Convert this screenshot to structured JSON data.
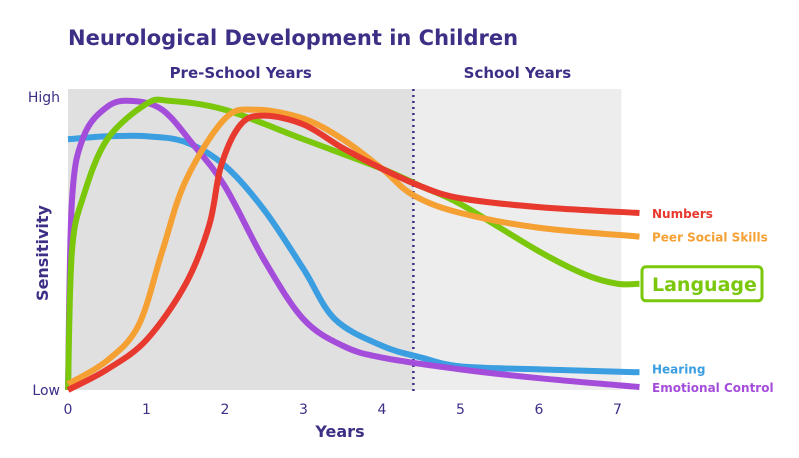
{
  "chart_data": {
    "type": "line",
    "title": "Neurological Development in Children",
    "xlabel": "Years",
    "ylabel": "Sensitivity",
    "xlim": [
      0,
      7.3
    ],
    "ylim": [
      0,
      1
    ],
    "x_ticks": [
      "0",
      "1",
      "2",
      "3",
      "4",
      "5",
      "6",
      "7"
    ],
    "y_ticks": [
      "Low",
      "High"
    ],
    "regions": [
      {
        "label": "Pre-School Years",
        "x": [
          0,
          4.4
        ],
        "color": "#e0e0e0"
      },
      {
        "label": "School Years",
        "x": [
          4.4,
          7.05
        ],
        "color": "#ededed"
      }
    ],
    "divider_x": 4.4,
    "grid": false,
    "colors": {
      "title": "#3d2f86",
      "axis": "#3d2f86",
      "divider": "#3d2f86"
    },
    "series": [
      {
        "name": "Numbers",
        "color": "#e8392f",
        "highlight": false,
        "x": [
          0,
          0.5,
          1,
          1.5,
          1.8,
          1.95,
          2.2,
          2.5,
          3,
          3.5,
          4,
          4.5,
          5,
          6,
          7.28
        ],
        "y": [
          0,
          0.07,
          0.17,
          0.36,
          0.56,
          0.76,
          0.9,
          0.93,
          0.9,
          0.82,
          0.75,
          0.69,
          0.65,
          0.62,
          0.6
        ]
      },
      {
        "name": "Peer Social Skills",
        "color": "#f5a033",
        "highlight": false,
        "x": [
          0,
          0.5,
          0.9,
          1.2,
          1.5,
          2,
          2.4,
          3,
          3.5,
          4,
          4.4,
          5,
          6,
          7.28
        ],
        "y": [
          0.02,
          0.1,
          0.22,
          0.47,
          0.71,
          0.92,
          0.95,
          0.92,
          0.85,
          0.75,
          0.66,
          0.6,
          0.55,
          0.52
        ]
      },
      {
        "name": "Language",
        "color": "#7ac70c",
        "highlight": true,
        "x": [
          0,
          0.05,
          0.2,
          0.5,
          1,
          1.3,
          2,
          3,
          4,
          4.5,
          5,
          6,
          6.6,
          7,
          7.28
        ],
        "y": [
          0,
          0.47,
          0.66,
          0.85,
          0.97,
          0.98,
          0.95,
          0.85,
          0.75,
          0.69,
          0.63,
          0.47,
          0.39,
          0.36,
          0.36
        ]
      },
      {
        "name": "Hearing",
        "color": "#3b9ee0",
        "highlight": false,
        "x": [
          0,
          0.5,
          1,
          1.5,
          2,
          2.5,
          3,
          3.4,
          4,
          4.5,
          5,
          6,
          7.28
        ],
        "y": [
          0.85,
          0.86,
          0.86,
          0.84,
          0.76,
          0.61,
          0.41,
          0.24,
          0.15,
          0.11,
          0.08,
          0.07,
          0.06
        ]
      },
      {
        "name": "Emotional Control",
        "color": "#a54ddb",
        "highlight": false,
        "x": [
          0,
          0.05,
          0.2,
          0.5,
          0.8,
          1.2,
          1.6,
          2,
          2.5,
          3,
          3.5,
          4,
          5,
          6,
          7.28
        ],
        "y": [
          0,
          0.64,
          0.86,
          0.96,
          0.98,
          0.95,
          0.83,
          0.69,
          0.44,
          0.24,
          0.15,
          0.11,
          0.07,
          0.04,
          0.01
        ]
      }
    ]
  }
}
